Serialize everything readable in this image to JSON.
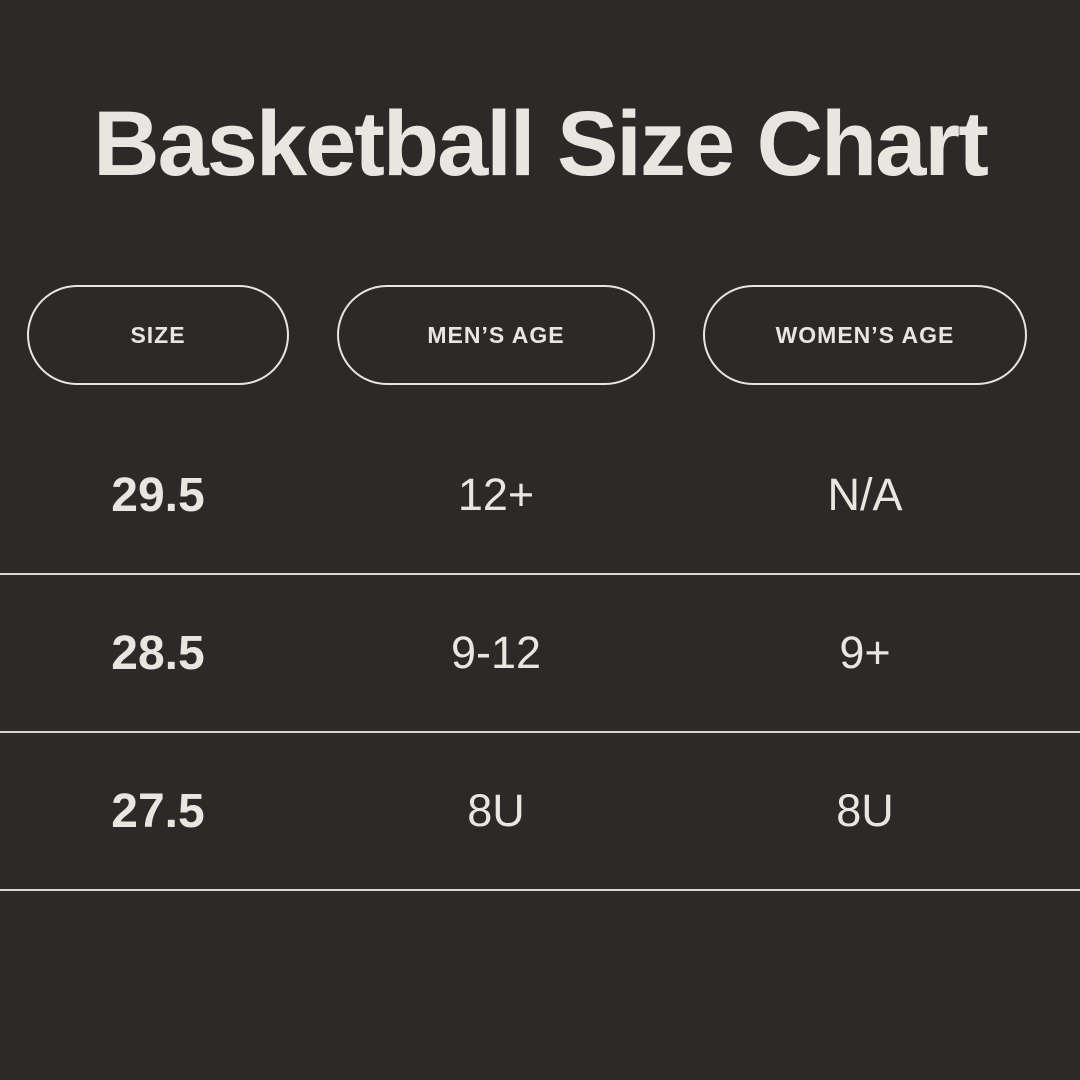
{
  "theme": {
    "background": "#2b2a28",
    "text": "#e9e6df",
    "divider": "#d9d6cf",
    "pill_border": "#e9e6df"
  },
  "chart_data": {
    "type": "table",
    "title": "Basketball Size Chart",
    "columns": [
      "SIZE",
      "MEN’S AGE",
      "WOMEN’S AGE"
    ],
    "rows": [
      [
        "29.5",
        "12+",
        "N/A"
      ],
      [
        "28.5",
        "9-12",
        "9+"
      ],
      [
        "27.5",
        "8U",
        "8U"
      ]
    ]
  }
}
